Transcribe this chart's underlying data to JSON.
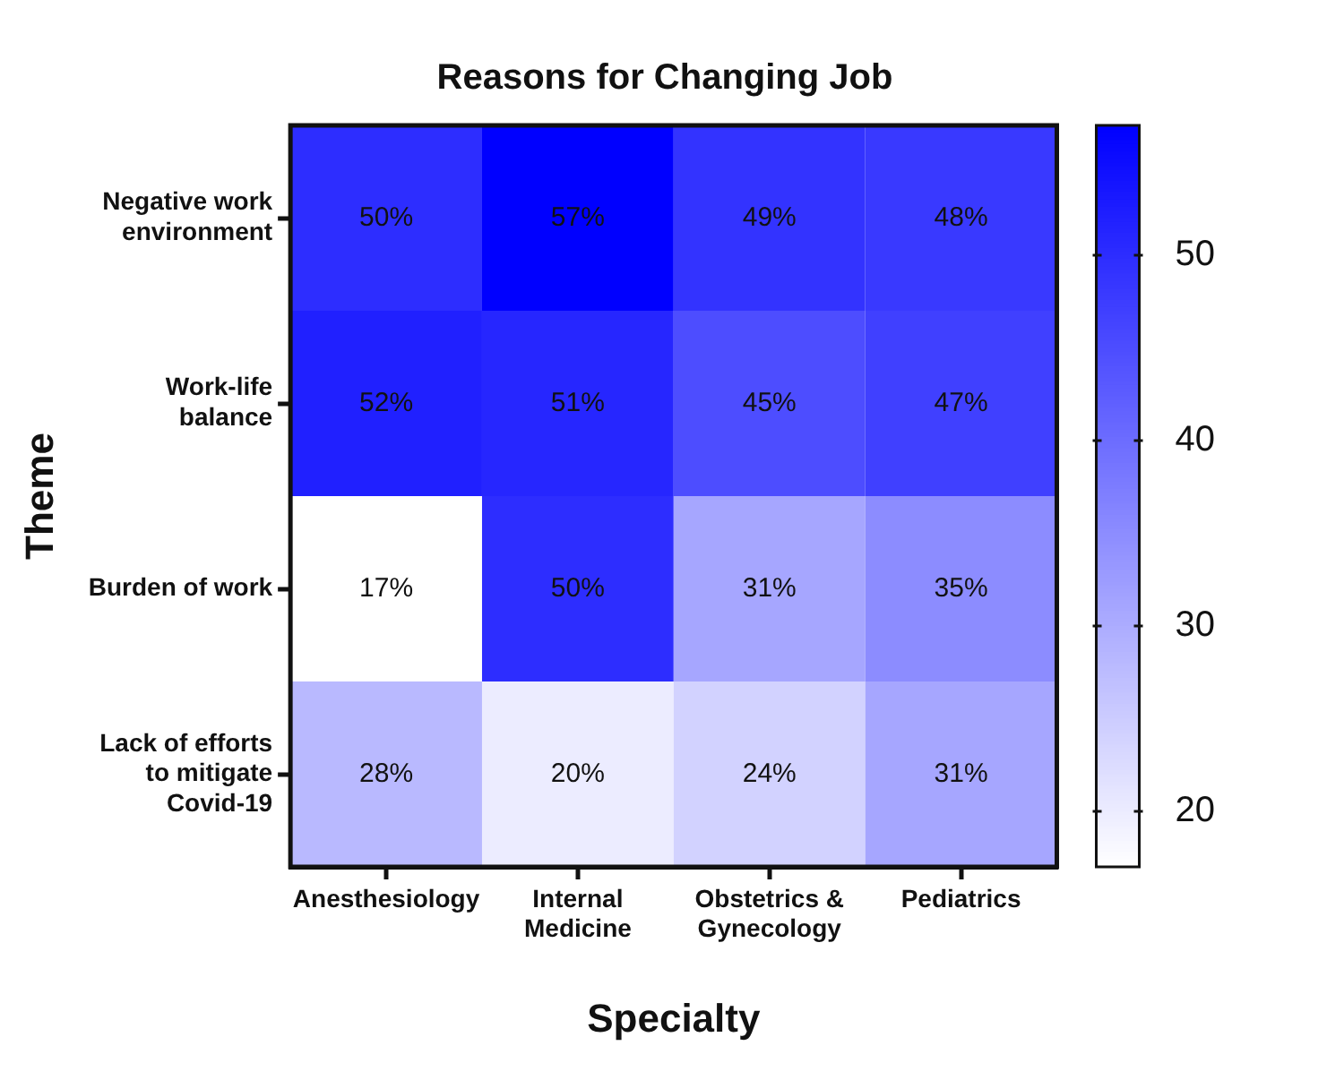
{
  "chart_data": {
    "type": "heatmap",
    "title": "Reasons for Changing Job",
    "xlabel": "Specialty",
    "ylabel": "Theme",
    "categories": [
      "Anesthesiology",
      "Internal Medicine",
      "Obstetrics & Gynecology",
      "Pediatrics"
    ],
    "y_categories": [
      "Negative work environment",
      "Work-life balance",
      "Burden of work",
      "Lack of efforts to mitigate Covid-19"
    ],
    "cells": [
      [
        50,
        57,
        49,
        48
      ],
      [
        52,
        51,
        45,
        47
      ],
      [
        17,
        50,
        31,
        35
      ],
      [
        28,
        20,
        24,
        31
      ]
    ],
    "cell_labels": [
      [
        "50%",
        "57%",
        "49%",
        "48%"
      ],
      [
        "52%",
        "51%",
        "45%",
        "47%"
      ],
      [
        "17%",
        "50%",
        "31%",
        "35%"
      ],
      [
        "28%",
        "20%",
        "24%",
        "31%"
      ]
    ],
    "clim": [
      17,
      57
    ],
    "cticks": [
      20,
      30,
      40,
      50
    ]
  }
}
